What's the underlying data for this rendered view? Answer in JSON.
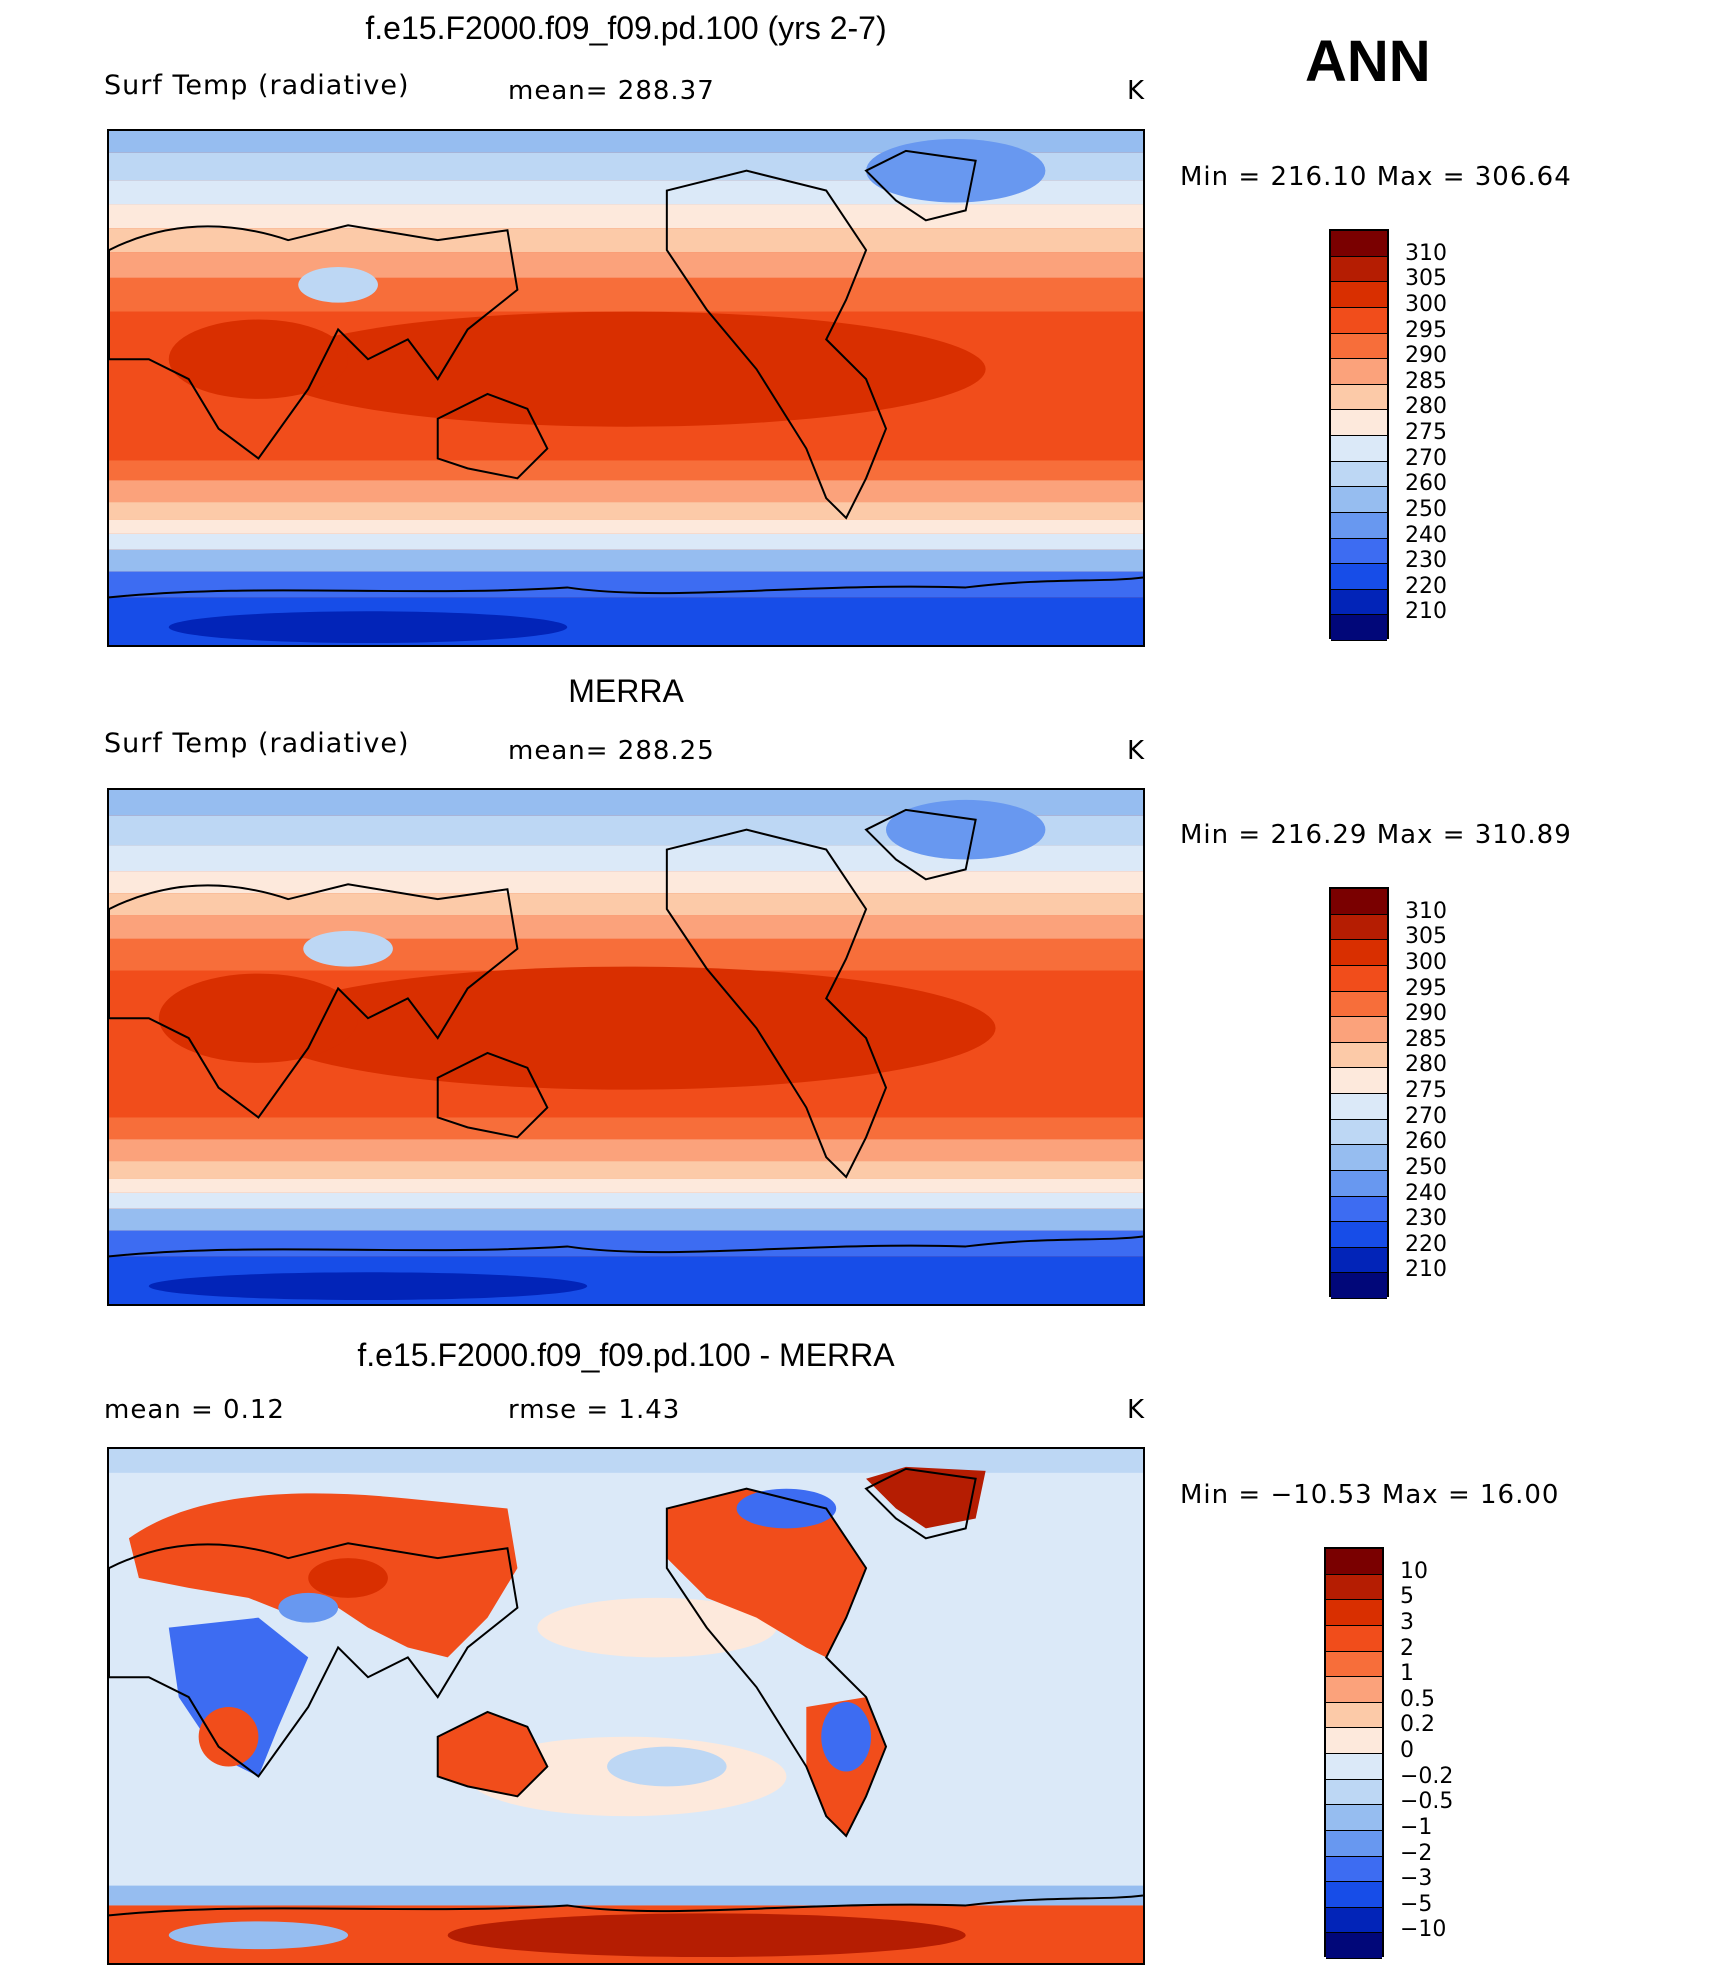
{
  "season": "ANN",
  "temp_levels": [
    "310",
    "305",
    "300",
    "295",
    "290",
    "285",
    "280",
    "275",
    "270",
    "260",
    "250",
    "240",
    "230",
    "220",
    "210"
  ],
  "temp_colors": [
    "#7a0000",
    "#b51d02",
    "#d92f00",
    "#f14d1b",
    "#f76e3a",
    "#fba27b",
    "#fccaa8",
    "#fde9dc",
    "#dbe9f8",
    "#bdd7f4",
    "#96bdf0",
    "#6898f0",
    "#3d6cf2",
    "#174de8",
    "#0224b8",
    "#010779"
  ],
  "diff_levels": [
    "10",
    "5",
    "3",
    "2",
    "1",
    "0.5",
    "0.2",
    "0",
    "−0.2",
    "−0.5",
    "−1",
    "−2",
    "−3",
    "−5",
    "−10"
  ],
  "diff_colors": [
    "#7a0000",
    "#b51d02",
    "#d92f00",
    "#f14d1b",
    "#f76e3a",
    "#fba27b",
    "#fccaa8",
    "#fde9dc",
    "#dbe9f8",
    "#bdd7f4",
    "#96bdf0",
    "#6898f0",
    "#3d6cf2",
    "#174de8",
    "#0224b8",
    "#010779"
  ],
  "panels": [
    {
      "title": "f.e15.F2000.f09_f09.pd.100 (yrs 2-7)",
      "left": "Surf Temp (radiative)",
      "center": "mean= 288.37",
      "units": "K",
      "minmax": "Min  =  216.10  Max  =  306.64"
    },
    {
      "title": "MERRA",
      "left": "Surf Temp (radiative)",
      "center": "mean= 288.25",
      "units": "K",
      "minmax": "Min  =  216.29  Max  =  310.89"
    },
    {
      "title": "f.e15.F2000.f09_f09.pd.100 - MERRA",
      "left": "mean  =     0.12",
      "center": "rmse  =     1.43",
      "units": "K",
      "minmax": "Min  =  −10.53  Max  =    16.00"
    }
  ]
}
